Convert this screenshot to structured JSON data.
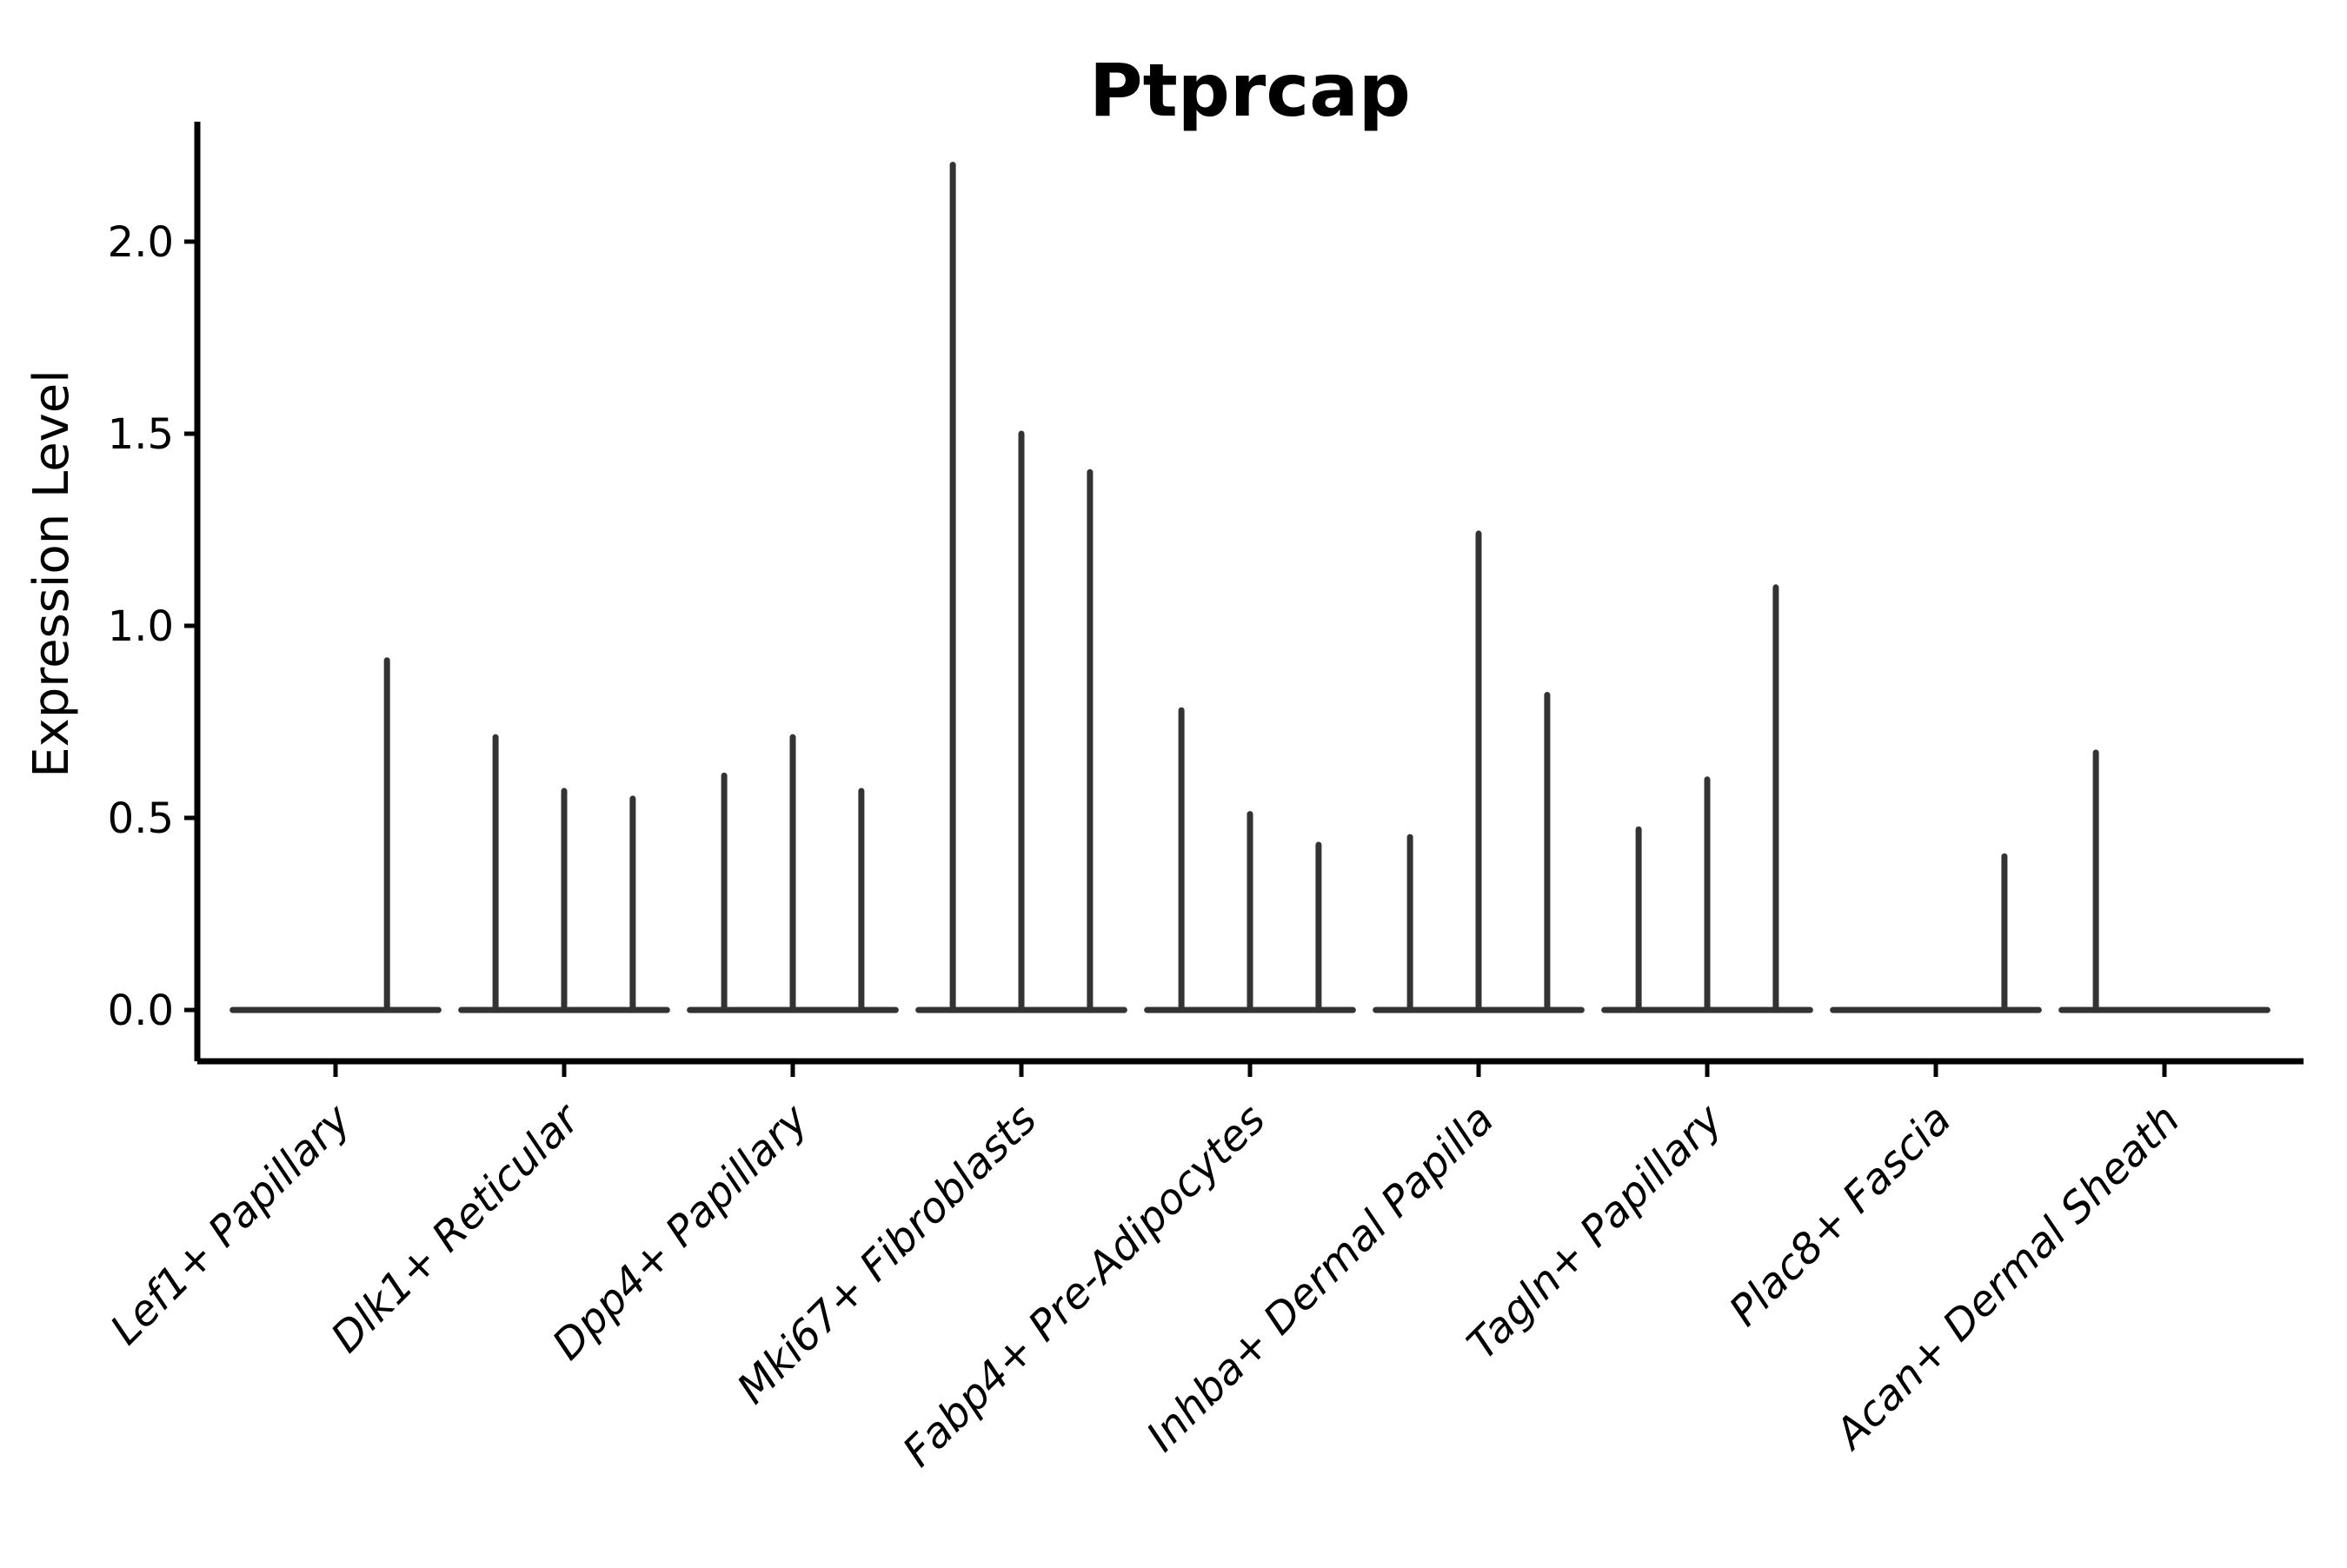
{
  "chart_data": {
    "type": "violin",
    "title": "Ptprcap",
    "ylabel": "Expression Level",
    "xlabel": "",
    "ytick_labels": [
      "0.0",
      "0.5",
      "1.0",
      "1.5",
      "2.0"
    ],
    "ytick_values": [
      0.0,
      0.5,
      1.0,
      1.5,
      2.0
    ],
    "ylim": [
      -0.13,
      2.31
    ],
    "grid": false,
    "legend": "none",
    "colors": {
      "violin": "#333333",
      "axis": "#000000",
      "text": "#000000",
      "background": "#ffffff"
    },
    "categories": [
      "Lef1+ Papillary",
      "Dlk1+ Reticular",
      "Dpp4+ Papillary",
      "Mki67+ Fibroblasts",
      "Fabp4+ Pre-Adipocytes",
      "Inhba+ Dermal Papilla",
      "Tagln+ Papillary",
      "Plac8+ Fascia",
      "Acan+ Dermal Sheath"
    ],
    "baseline_halfwidth": 0.45,
    "violins": [
      {
        "category": "Lef1+ Papillary",
        "groups": [
          {
            "offset": -0.225,
            "max_expression": 0
          },
          {
            "offset": 0.225,
            "max_expression": 0.91
          }
        ]
      },
      {
        "category": "Dlk1+ Reticular",
        "groups": [
          {
            "offset": -0.3,
            "max_expression": 0.71
          },
          {
            "offset": 0.0,
            "max_expression": 0.57
          },
          {
            "offset": 0.3,
            "max_expression": 0.55
          }
        ]
      },
      {
        "category": "Dpp4+ Papillary",
        "groups": [
          {
            "offset": -0.3,
            "max_expression": 0.61
          },
          {
            "offset": 0.0,
            "max_expression": 0.71
          },
          {
            "offset": 0.3,
            "max_expression": 0.57
          }
        ]
      },
      {
        "category": "Mki67+ Fibroblasts",
        "groups": [
          {
            "offset": -0.3,
            "max_expression": 2.2
          },
          {
            "offset": 0.0,
            "max_expression": 1.5
          },
          {
            "offset": 0.3,
            "max_expression": 1.4
          }
        ]
      },
      {
        "category": "Fabp4+ Pre-Adipocytes",
        "groups": [
          {
            "offset": -0.3,
            "max_expression": 0.78
          },
          {
            "offset": 0.0,
            "max_expression": 0.51
          },
          {
            "offset": 0.3,
            "max_expression": 0.43
          }
        ]
      },
      {
        "category": "Inhba+ Dermal Papilla",
        "groups": [
          {
            "offset": -0.3,
            "max_expression": 0.45
          },
          {
            "offset": 0.0,
            "max_expression": 1.24
          },
          {
            "offset": 0.3,
            "max_expression": 0.82
          }
        ]
      },
      {
        "category": "Tagln+ Papillary",
        "groups": [
          {
            "offset": -0.3,
            "max_expression": 0.47
          },
          {
            "offset": 0.0,
            "max_expression": 0.6
          },
          {
            "offset": 0.3,
            "max_expression": 1.1
          }
        ]
      },
      {
        "category": "Plac8+ Fascia",
        "groups": [
          {
            "offset": -0.3,
            "max_expression": 0
          },
          {
            "offset": 0.0,
            "max_expression": 0
          },
          {
            "offset": 0.3,
            "max_expression": 0.4
          }
        ]
      },
      {
        "category": "Acan+ Dermal Sheath",
        "groups": [
          {
            "offset": -0.3,
            "max_expression": 0.67
          },
          {
            "offset": 0.0,
            "max_expression": 0
          },
          {
            "offset": 0.3,
            "max_expression": 0
          }
        ]
      }
    ]
  }
}
